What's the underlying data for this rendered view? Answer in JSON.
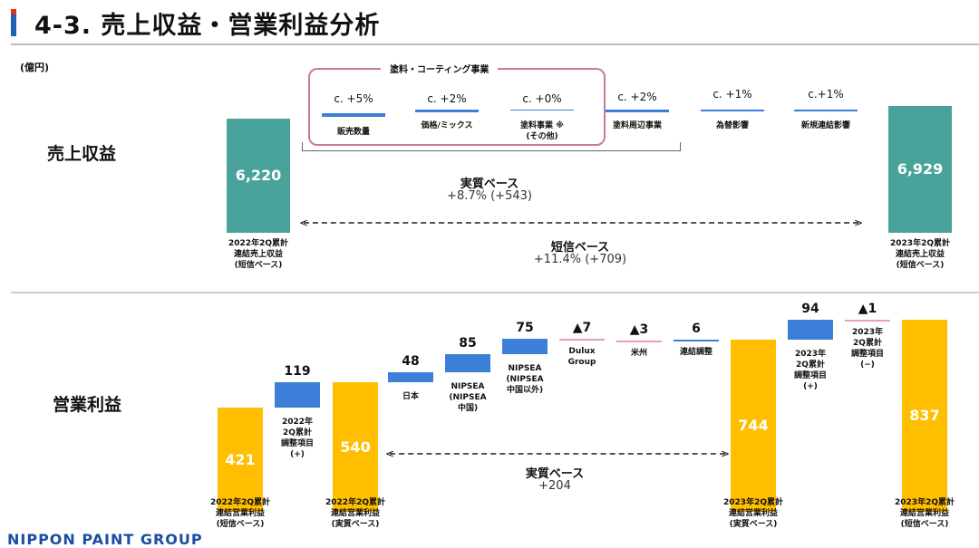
{
  "title": "4-3. 売上収益・営業利益分析",
  "unit": "(億円)",
  "colors": {
    "revenue_bar": "#4aa39a",
    "profit_bar": "#ffbf00",
    "increase": "#3c7fd8",
    "decrease": "#e9a0b4",
    "box": "#c9799e"
  },
  "chart_data": [
    {
      "type": "waterfall",
      "title": "売上収益",
      "start": {
        "label": "2022年2Q累計\n連結売上収益\n(短信ベース)",
        "value": 6220,
        "text": "6,220"
      },
      "end": {
        "label": "2023年2Q累計\n連結売上収益\n(短信ベース)",
        "value": 6929,
        "text": "6,929"
      },
      "group_label": "塗料・コーティング事業",
      "drivers": [
        {
          "pct": "c. +5%",
          "label": "販売数量"
        },
        {
          "pct": "c. +2%",
          "label": "価格/ミックス"
        },
        {
          "pct": "c. +0%",
          "label": "塗料事業 ※\n(その他)"
        },
        {
          "pct": "c. +2%",
          "label": "塗料周辺事業"
        },
        {
          "pct": "c. +1%",
          "label": "為替影響"
        },
        {
          "pct": "c.+1%",
          "label": "新規連結影響"
        }
      ],
      "real_basis": {
        "label": "実質ベース",
        "value": "+8.7% (+543)"
      },
      "tanshin_basis": {
        "label": "短信ベース",
        "value": "+11.4% (+709)"
      }
    },
    {
      "type": "waterfall",
      "title": "営業利益",
      "steps": [
        {
          "kind": "total",
          "value": 421,
          "text": "421",
          "label": "2022年2Q累計\n連結営業利益\n(短信ベース)"
        },
        {
          "kind": "delta",
          "value": 119,
          "text": "119",
          "label": "2022年\n2Q累計\n調整項目\n(+)"
        },
        {
          "kind": "total",
          "value": 540,
          "text": "540",
          "label": "2022年2Q累計\n連結営業利益\n(実質ベース)"
        },
        {
          "kind": "delta",
          "value": 48,
          "text": "48",
          "label": "日本"
        },
        {
          "kind": "delta",
          "value": 85,
          "text": "85",
          "label": "NIPSEA\n(NIPSEA\n中国)"
        },
        {
          "kind": "delta",
          "value": 75,
          "text": "75",
          "label": "NIPSEA\n(NIPSEA\n中国以外)"
        },
        {
          "kind": "delta",
          "value": -7,
          "text": "▲7",
          "label": "Dulux\nGroup"
        },
        {
          "kind": "delta",
          "value": -3,
          "text": "▲3",
          "label": "米州"
        },
        {
          "kind": "delta",
          "value": 6,
          "text": "6",
          "label": "連結調整"
        },
        {
          "kind": "total",
          "value": 744,
          "text": "744",
          "label": "2023年2Q累計\n連結営業利益\n(実質ベース)"
        },
        {
          "kind": "delta",
          "value": 94,
          "text": "94",
          "label": "2023年\n2Q累計\n調整項目\n(+)"
        },
        {
          "kind": "delta",
          "value": -1,
          "text": "▲1",
          "label": "2023年\n2Q累計\n調整項目\n(−)"
        },
        {
          "kind": "total",
          "value": 837,
          "text": "837",
          "label": "2023年2Q累計\n連結営業利益\n(短信ベース)"
        }
      ],
      "real_basis": {
        "label": "実質ベース",
        "value": "+204"
      }
    }
  ],
  "footer": "NIPPON PAINT GROUP"
}
